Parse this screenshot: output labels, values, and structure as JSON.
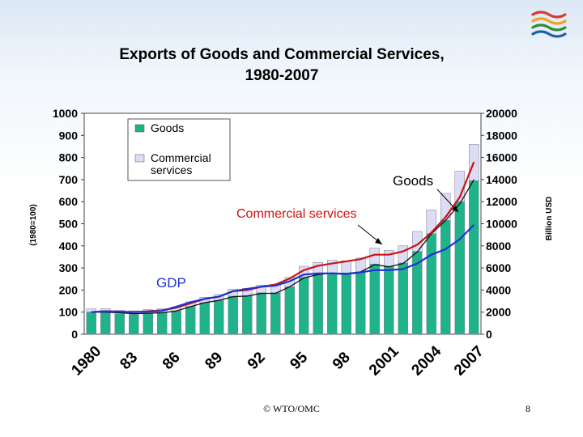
{
  "logo": {
    "name": "wto-logo-icon",
    "colors": [
      "#d63a2f",
      "#f2a31b",
      "#2e8b3c",
      "#1f5fa8"
    ]
  },
  "footer": {
    "copyright": "© WTO/OMC",
    "page": "8"
  },
  "chart_data": {
    "type": "bar+line",
    "title": [
      "Exports of Goods and Commercial Services,",
      "1980-2007"
    ],
    "left_axis": {
      "label": "(1980=100)",
      "ticks": [
        0,
        100,
        200,
        300,
        400,
        500,
        600,
        700,
        800,
        900,
        1000
      ],
      "ylim": [
        0,
        1000
      ]
    },
    "right_axis": {
      "label": "Billion USD",
      "ticks": [
        0,
        2000,
        4000,
        6000,
        8000,
        10000,
        12000,
        14000,
        16000,
        18000,
        20000
      ],
      "ylim": [
        0,
        20000
      ]
    },
    "x_tick_labels": [
      "1980",
      "83",
      "86",
      "89",
      "92",
      "95",
      "98",
      "2001",
      "2004",
      "2007"
    ],
    "years": [
      1980,
      1981,
      1982,
      1983,
      1984,
      1985,
      1986,
      1987,
      1988,
      1989,
      1990,
      1991,
      1992,
      1993,
      1994,
      1995,
      1996,
      1997,
      1998,
      1999,
      2000,
      2001,
      2002,
      2003,
      2004,
      2005,
      2006,
      2007
    ],
    "legend": {
      "position": "top-left",
      "items": [
        {
          "label": "Goods",
          "color": "#1fb38a"
        },
        {
          "label": "Commercial services",
          "color": "#dcdcf5"
        }
      ]
    },
    "series": [
      {
        "name": "Goods",
        "kind": "bar",
        "axis": "right",
        "color": "#1fb38a",
        "values": [
          2000,
          2000,
          1850,
          1800,
          1900,
          1950,
          2100,
          2500,
          2850,
          3050,
          3450,
          3500,
          3750,
          3750,
          4300,
          5150,
          5400,
          5550,
          5450,
          5650,
          6350,
          6150,
          6450,
          7500,
          9100,
          10300,
          12000,
          13900
        ]
      },
      {
        "name": "Commercial services",
        "kind": "bar-stack",
        "axis": "right",
        "color": "#dcdcf5",
        "values": [
          300,
          320,
          320,
          320,
          330,
          350,
          380,
          440,
          500,
          550,
          640,
          650,
          700,
          750,
          850,
          1000,
          1100,
          1150,
          1200,
          1250,
          1450,
          1450,
          1550,
          1800,
          2150,
          2450,
          2750,
          3300
        ]
      },
      {
        "name": "Goods",
        "kind": "line",
        "axis": "left",
        "color": "#111111",
        "values": [
          100,
          100,
          97,
          93,
          95,
          97,
          105,
          125,
          143,
          153,
          170,
          173,
          185,
          185,
          215,
          255,
          270,
          277,
          275,
          282,
          315,
          305,
          320,
          372,
          455,
          515,
          590,
          700
        ]
      },
      {
        "name": "Commercial services",
        "kind": "line",
        "axis": "left",
        "color": "#cc1111",
        "values": [
          100,
          104,
          102,
          100,
          104,
          108,
          120,
          140,
          160,
          170,
          195,
          200,
          215,
          225,
          252,
          290,
          310,
          320,
          330,
          340,
          360,
          360,
          375,
          405,
          460,
          530,
          620,
          780
        ]
      },
      {
        "name": "GDP",
        "kind": "line",
        "axis": "left",
        "color": "#1c33d1",
        "values": [
          100,
          104,
          102,
          100,
          102,
          106,
          125,
          145,
          160,
          170,
          195,
          205,
          215,
          220,
          240,
          270,
          275,
          275,
          273,
          280,
          290,
          290,
          295,
          320,
          360,
          385,
          430,
          495
        ]
      }
    ],
    "annotations": [
      {
        "text": "Goods",
        "color": "#000000"
      },
      {
        "text": "Commercial services",
        "color": "#cc1111"
      },
      {
        "text": "GDP",
        "color": "#1c33d1"
      }
    ]
  }
}
